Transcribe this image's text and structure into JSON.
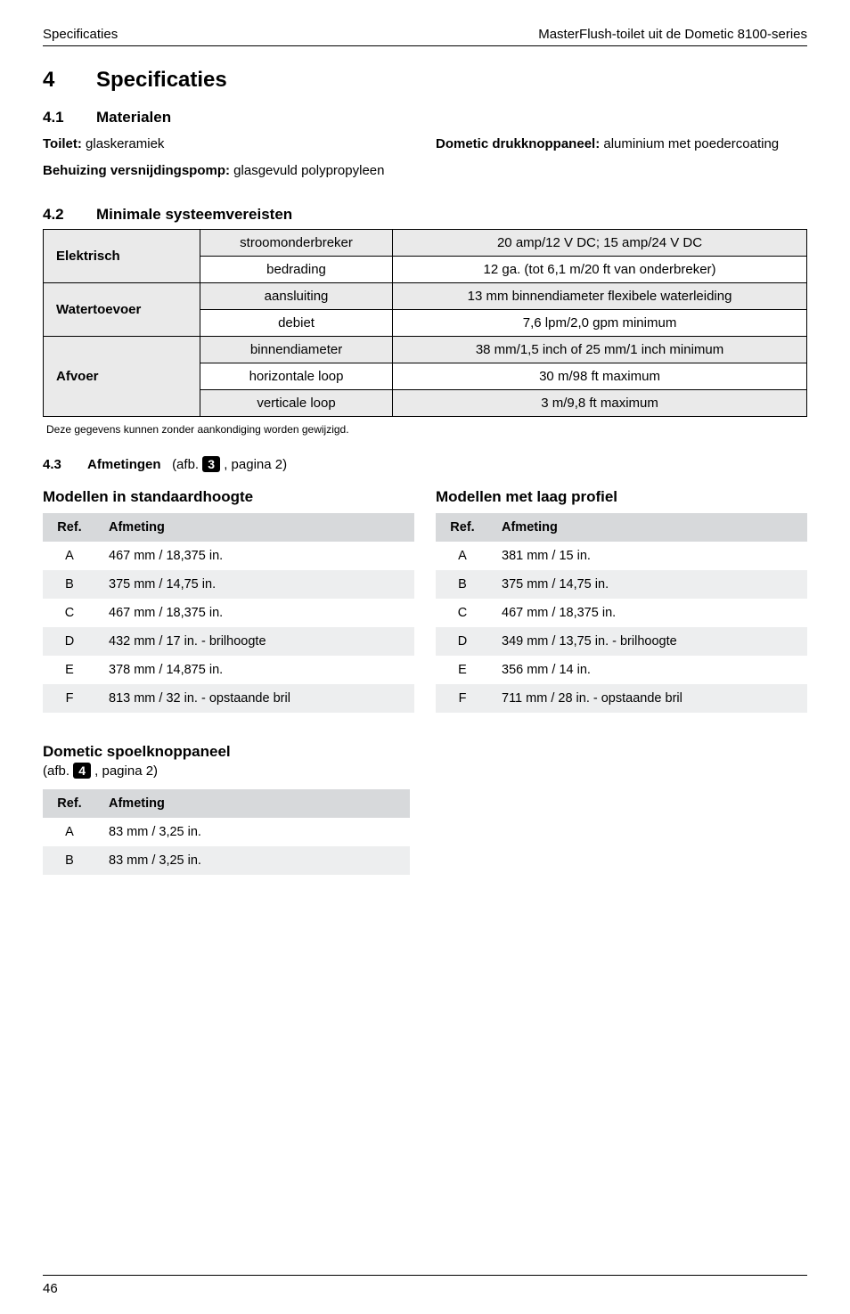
{
  "header": {
    "left": "Specificaties",
    "right": "MasterFlush-toilet uit de Dometic 8100-series"
  },
  "section4": {
    "number": "4",
    "title": "Specificaties",
    "sub41": {
      "number": "4.1",
      "title": "Materialen",
      "left": [
        {
          "label": "Toilet:",
          "text": " glaskeramiek"
        },
        {
          "label": "Behuizing versnijdingspomp:",
          "text": " glasgevuld polypropyleen"
        }
      ],
      "right": [
        {
          "label": "Dometic drukknoppaneel:",
          "text": " aluminium met poedercoating"
        }
      ]
    },
    "sub42": {
      "number": "4.2",
      "title": "Minimale systeemvereisten",
      "rows": [
        {
          "group": "Elektrisch",
          "rowspan": 2,
          "shaded": true,
          "key": "stroomonderbreker",
          "val": "20 amp/12 V DC; 15 amp/24 V DC"
        },
        {
          "group": "",
          "shaded": false,
          "key": "bedrading",
          "val": "12 ga. (tot 6,1 m/20 ft van onderbreker)"
        },
        {
          "group": "Watertoevoer",
          "rowspan": 2,
          "shaded": true,
          "key": "aansluiting",
          "val": "13 mm binnendiameter flexibele waterleiding"
        },
        {
          "group": "",
          "shaded": false,
          "key": "debiet",
          "val": "7,6 lpm/2,0 gpm minimum"
        },
        {
          "group": "Afvoer",
          "rowspan": 3,
          "shaded": true,
          "key": "binnendiameter",
          "val": "38 mm/1,5 inch of 25 mm/1 inch minimum"
        },
        {
          "group": "",
          "shaded": false,
          "key": "horizontale loop",
          "val": "30 m/98 ft maximum"
        },
        {
          "group": "",
          "shaded": true,
          "key": "verticale loop",
          "val": "3 m/9,8 ft maximum"
        }
      ],
      "footnote": "Deze gegevens kunnen zonder aankondiging worden gewijzigd."
    },
    "sub43": {
      "number": "4.3",
      "title": "Afmetingen",
      "afb_prefix": "(afb.",
      "afb_num": "3",
      "afb_suffix": ", pagina 2)",
      "left_heading": "Modellen in standaardhoogte",
      "right_heading": "Modellen met laag profiel",
      "header_ref": "Ref.",
      "header_afm": "Afmeting",
      "left_rows": [
        {
          "ref": "A",
          "val": "467 mm / 18,375 in."
        },
        {
          "ref": "B",
          "val": "375 mm / 14,75 in."
        },
        {
          "ref": "C",
          "val": "467 mm / 18,375 in."
        },
        {
          "ref": "D",
          "val": "432 mm / 17 in. - brilhoogte"
        },
        {
          "ref": "E",
          "val": "378 mm / 14,875 in."
        },
        {
          "ref": "F",
          "val": "813 mm / 32 in. - opstaande bril"
        }
      ],
      "right_rows": [
        {
          "ref": "A",
          "val": "381 mm / 15 in."
        },
        {
          "ref": "B",
          "val": "375 mm / 14,75 in."
        },
        {
          "ref": "C",
          "val": "467 mm / 18,375 in."
        },
        {
          "ref": "D",
          "val": "349 mm / 13,75 in. - brilhoogte"
        },
        {
          "ref": "E",
          "val": "356 mm / 14 in."
        },
        {
          "ref": "F",
          "val": "711 mm / 28 in. - opstaande bril"
        }
      ],
      "panel": {
        "title": "Dometic spoelknoppaneel",
        "afb_prefix": "(afb.",
        "afb_num": "4",
        "afb_suffix": ", pagina 2)",
        "rows": [
          {
            "ref": "A",
            "val": "83 mm / 3,25 in."
          },
          {
            "ref": "B",
            "val": "83 mm / 3,25 in."
          }
        ]
      }
    }
  },
  "page_number": "46"
}
